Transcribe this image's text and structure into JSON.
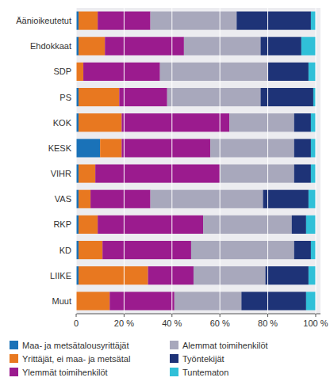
{
  "chart_data": {
    "type": "bar",
    "orientation": "horizontal",
    "stacked": true,
    "grid": true,
    "legend": "bottom",
    "categories": [
      "Äänioikeutetut",
      "Ehdokkaat",
      "SDP",
      "PS",
      "KOK",
      "KESK",
      "VIHR",
      "VAS",
      "RKP",
      "KD",
      "LIIKE",
      "Muut"
    ],
    "series": [
      {
        "name": "Maa- ja metsätalousyrittäjät",
        "color": "#1a72b8",
        "values": [
          1,
          1,
          0,
          1,
          1,
          10,
          1,
          1,
          1,
          1,
          1,
          0
        ]
      },
      {
        "name": "Yrittäjät, ei maa- ja metsätal",
        "color": "#e87820",
        "values": [
          8,
          11,
          3,
          17,
          18,
          9,
          7,
          5,
          8,
          10,
          29,
          14
        ]
      },
      {
        "name": "Ylemmät toimihenkilöt",
        "color": "#9b1b8e",
        "values": [
          22,
          33,
          32,
          20,
          45,
          37,
          52,
          25,
          44,
          37,
          19,
          27
        ]
      },
      {
        "name": "Alemmat toimihenkilöt",
        "color": "#a8a8bc",
        "values": [
          36,
          32,
          45,
          39,
          27,
          35,
          31,
          47,
          37,
          43,
          30,
          28
        ]
      },
      {
        "name": "Työntekijät",
        "color": "#1e3377",
        "values": [
          31,
          17,
          17,
          22,
          7,
          7,
          7,
          19,
          6,
          7,
          18,
          27
        ]
      },
      {
        "name": "Tuntematon",
        "color": "#30c0d8",
        "values": [
          2,
          6,
          3,
          1,
          2,
          2,
          2,
          3,
          4,
          2,
          3,
          4
        ]
      }
    ],
    "xlim": [
      0,
      102
    ],
    "xticks": [
      0,
      {
        "value": 20,
        "label": "20 %"
      },
      {
        "value": 40,
        "label": "40 %"
      },
      {
        "value": 60,
        "label": "60 %"
      },
      {
        "value": 80,
        "label": "80 %"
      },
      {
        "value": 100,
        "label": "100 %"
      }
    ]
  }
}
